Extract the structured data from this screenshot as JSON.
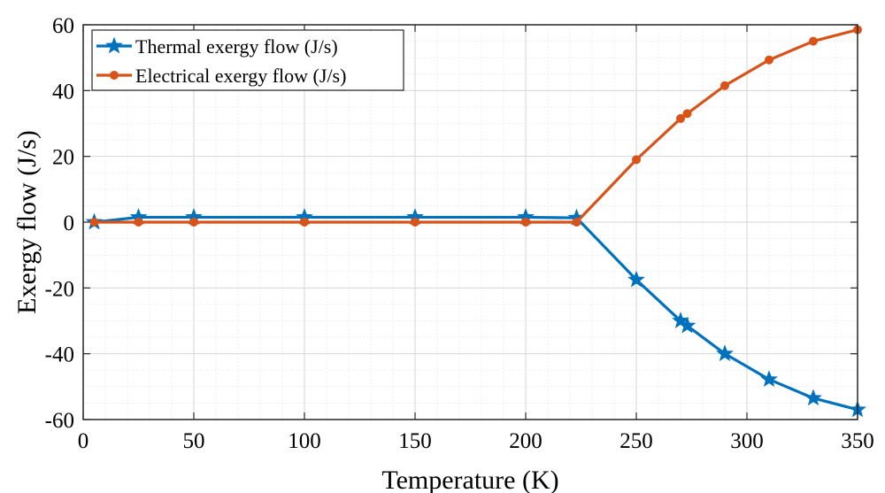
{
  "chart_data": {
    "type": "line",
    "title": "",
    "xlabel": "Temperature (K)",
    "ylabel": "Exergy flow (J/s)",
    "xlim": [
      0,
      350
    ],
    "ylim": [
      -60,
      60
    ],
    "xticks": [
      0,
      50,
      100,
      150,
      200,
      250,
      300,
      350
    ],
    "yticks": [
      -60,
      -40,
      -20,
      0,
      20,
      40,
      60
    ],
    "xtick_labels": [
      "0",
      "50",
      "100",
      "150",
      "200",
      "250",
      "300",
      "350"
    ],
    "ytick_labels": [
      "-60",
      "-40",
      "-20",
      "0",
      "20",
      "40",
      "60"
    ],
    "grid": true,
    "legend_position": "top-left",
    "series": [
      {
        "name": "Thermal exergy flow (J/s)",
        "color": "#0072BD",
        "marker": "star",
        "x": [
          5,
          25,
          50,
          100,
          150,
          200,
          223,
          250,
          270,
          273,
          290,
          310,
          330,
          350
        ],
        "y": [
          0,
          1.5,
          1.5,
          1.5,
          1.5,
          1.5,
          1.3,
          -17.5,
          -30,
          -31.5,
          -40,
          -47.8,
          -53.5,
          -57
        ]
      },
      {
        "name": "Electrical exergy flow (J/s)",
        "color": "#D95319",
        "marker": "circle",
        "x": [
          5,
          25,
          50,
          100,
          150,
          200,
          223,
          250,
          270,
          273,
          290,
          310,
          330,
          350
        ],
        "y": [
          0,
          0,
          0,
          0,
          0,
          0,
          0,
          19,
          31.5,
          33,
          41.5,
          49.3,
          55,
          58.5
        ]
      }
    ]
  }
}
